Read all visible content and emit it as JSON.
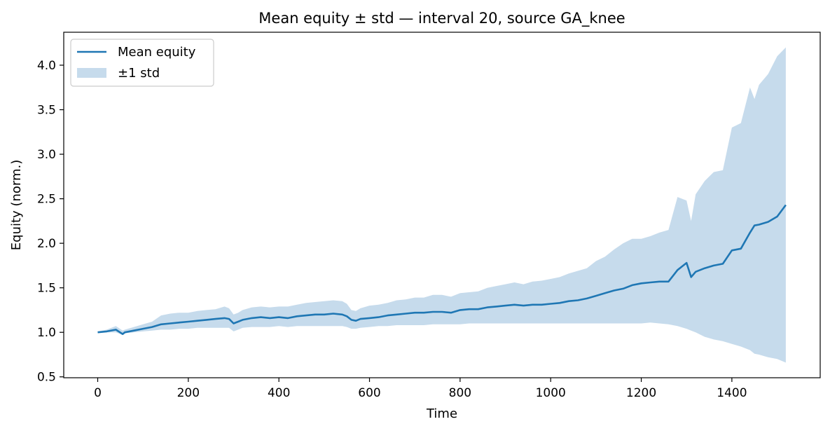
{
  "chart_data": {
    "type": "line",
    "title": "Mean equity ± std — interval 20, source GA_knee",
    "xlabel": "Time",
    "ylabel": "Equity (norm.)",
    "xlim": [
      -75,
      1595
    ],
    "ylim": [
      0.49,
      4.37
    ],
    "xticks": [
      0,
      200,
      400,
      600,
      800,
      1000,
      1200,
      1400
    ],
    "yticks": [
      0.5,
      1.0,
      1.5,
      2.0,
      2.5,
      3.0,
      3.5,
      4.0
    ],
    "ytick_labels": [
      "0.5",
      "1.0",
      "1.5",
      "2.0",
      "2.5",
      "3.0",
      "3.5",
      "4.0"
    ],
    "grid": false,
    "legend": {
      "placement": "top-left",
      "entries": [
        "Mean equity",
        "±1 std"
      ]
    },
    "colors": {
      "line": "#1f77b4",
      "band": "#c6dbec"
    },
    "x": [
      0,
      20,
      40,
      55,
      60,
      80,
      100,
      120,
      140,
      160,
      180,
      200,
      220,
      240,
      260,
      280,
      290,
      300,
      310,
      320,
      340,
      360,
      380,
      400,
      420,
      440,
      460,
      480,
      500,
      520,
      540,
      550,
      560,
      570,
      580,
      600,
      620,
      640,
      660,
      680,
      700,
      720,
      740,
      760,
      780,
      800,
      820,
      840,
      860,
      880,
      900,
      920,
      940,
      960,
      980,
      1000,
      1020,
      1040,
      1060,
      1080,
      1100,
      1120,
      1140,
      1160,
      1180,
      1200,
      1220,
      1240,
      1260,
      1280,
      1300,
      1310,
      1320,
      1340,
      1360,
      1380,
      1400,
      1420,
      1440,
      1450,
      1460,
      1480,
      1500,
      1519
    ],
    "series": [
      {
        "name": "Mean equity",
        "values": [
          1.0,
          1.01,
          1.03,
          0.98,
          1.0,
          1.02,
          1.04,
          1.06,
          1.09,
          1.1,
          1.11,
          1.12,
          1.13,
          1.14,
          1.15,
          1.16,
          1.15,
          1.1,
          1.12,
          1.14,
          1.16,
          1.17,
          1.16,
          1.17,
          1.16,
          1.18,
          1.19,
          1.2,
          1.2,
          1.21,
          1.2,
          1.18,
          1.14,
          1.13,
          1.15,
          1.16,
          1.17,
          1.19,
          1.2,
          1.21,
          1.22,
          1.22,
          1.23,
          1.23,
          1.22,
          1.25,
          1.26,
          1.26,
          1.28,
          1.29,
          1.3,
          1.31,
          1.3,
          1.31,
          1.31,
          1.32,
          1.33,
          1.35,
          1.36,
          1.38,
          1.41,
          1.44,
          1.47,
          1.49,
          1.53,
          1.55,
          1.56,
          1.57,
          1.57,
          1.7,
          1.78,
          1.62,
          1.68,
          1.72,
          1.75,
          1.77,
          1.92,
          1.94,
          2.12,
          2.2,
          2.21,
          2.24,
          2.3,
          2.43
        ]
      },
      {
        "name": "±1 std",
        "lower": [
          1.0,
          1.0,
          1.0,
          0.97,
          0.99,
          1.0,
          1.01,
          1.02,
          1.03,
          1.03,
          1.04,
          1.04,
          1.05,
          1.05,
          1.05,
          1.05,
          1.05,
          1.01,
          1.03,
          1.05,
          1.06,
          1.06,
          1.06,
          1.07,
          1.06,
          1.07,
          1.07,
          1.07,
          1.07,
          1.07,
          1.07,
          1.06,
          1.04,
          1.04,
          1.05,
          1.06,
          1.07,
          1.07,
          1.08,
          1.08,
          1.08,
          1.08,
          1.09,
          1.09,
          1.09,
          1.09,
          1.1,
          1.1,
          1.1,
          1.1,
          1.1,
          1.1,
          1.1,
          1.1,
          1.1,
          1.1,
          1.1,
          1.1,
          1.1,
          1.1,
          1.1,
          1.1,
          1.1,
          1.1,
          1.1,
          1.1,
          1.11,
          1.1,
          1.09,
          1.07,
          1.04,
          1.02,
          1.0,
          0.95,
          0.92,
          0.9,
          0.87,
          0.84,
          0.8,
          0.76,
          0.75,
          0.72,
          0.7,
          0.66
        ],
        "upper": [
          1.01,
          1.03,
          1.07,
          1.02,
          1.03,
          1.06,
          1.09,
          1.12,
          1.19,
          1.21,
          1.22,
          1.22,
          1.24,
          1.25,
          1.26,
          1.29,
          1.27,
          1.2,
          1.22,
          1.25,
          1.28,
          1.29,
          1.28,
          1.29,
          1.29,
          1.31,
          1.33,
          1.34,
          1.35,
          1.36,
          1.35,
          1.32,
          1.25,
          1.24,
          1.27,
          1.3,
          1.31,
          1.33,
          1.36,
          1.37,
          1.39,
          1.39,
          1.42,
          1.42,
          1.4,
          1.44,
          1.45,
          1.46,
          1.5,
          1.52,
          1.54,
          1.56,
          1.54,
          1.57,
          1.58,
          1.6,
          1.62,
          1.66,
          1.69,
          1.72,
          1.8,
          1.85,
          1.93,
          2.0,
          2.05,
          2.05,
          2.08,
          2.12,
          2.15,
          2.52,
          2.48,
          2.25,
          2.55,
          2.7,
          2.8,
          2.82,
          3.3,
          3.35,
          3.75,
          3.62,
          3.78,
          3.9,
          4.1,
          4.2
        ]
      }
    ]
  }
}
